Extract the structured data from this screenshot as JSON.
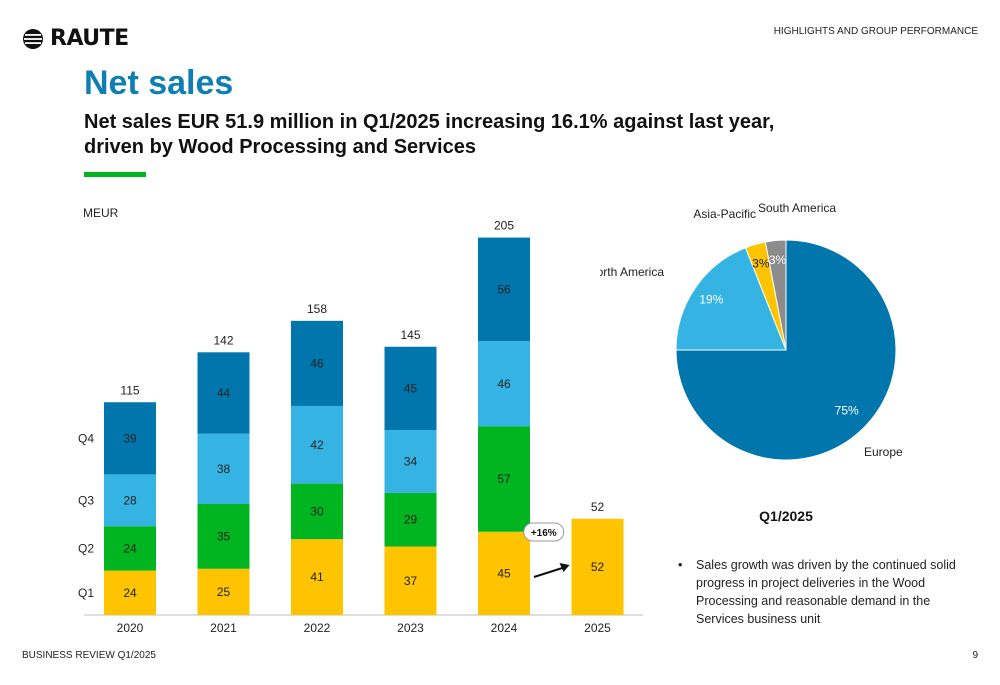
{
  "header": {
    "logo_text": "RAUTE",
    "section_label": "HIGHLIGHTS AND GROUP PERFORMANCE"
  },
  "title": "Net sales",
  "subtitle": "Net sales EUR 51.9 million in Q1/2025 increasing 16.1% against last year, driven by Wood Processing and Services",
  "bullet": "Sales growth was driven by the continued solid progress in project deliveries in the Wood Processing and reasonable demand in the Services business unit",
  "footer": {
    "left": "BUSINESS REVIEW Q1/2025",
    "page": "9"
  },
  "colors": {
    "brand_blue": "#0f7fb3",
    "accent_green": "#00b51f"
  },
  "chart_data": [
    {
      "type": "bar",
      "stacked": true,
      "ylabel": "MEUR",
      "categories": [
        "2020",
        "2021",
        "2022",
        "2023",
        "2024",
        "2025"
      ],
      "series": [
        {
          "name": "Q1",
          "color": "#fec400",
          "values": [
            24,
            25,
            41,
            37,
            45,
            52
          ]
        },
        {
          "name": "Q2",
          "color": "#00b51f",
          "values": [
            24,
            35,
            30,
            29,
            57,
            null
          ]
        },
        {
          "name": "Q3",
          "color": "#35b4e4",
          "values": [
            28,
            38,
            42,
            34,
            46,
            null
          ]
        },
        {
          "name": "Q4",
          "color": "#0076ad",
          "values": [
            39,
            44,
            46,
            45,
            56,
            null
          ]
        }
      ],
      "totals": [
        115,
        142,
        158,
        145,
        205,
        52
      ],
      "ylim": [
        0,
        205
      ],
      "legend": "left",
      "grid": false,
      "annotations": [
        {
          "text": "+16%",
          "from": "2024",
          "to": "2025"
        }
      ]
    },
    {
      "type": "pie",
      "title": "Q1/2025",
      "slices": [
        {
          "label": "Europe",
          "value": 75,
          "color": "#0076ad",
          "value_label": "75%"
        },
        {
          "label": "North America",
          "value": 19,
          "color": "#35b4e4",
          "value_label": "19%"
        },
        {
          "label": "Asia-Pacific",
          "value": 3,
          "color": "#fec400",
          "value_label": "3%"
        },
        {
          "label": "South America",
          "value": 3,
          "color": "#8c8c8c",
          "value_label": "3%"
        }
      ]
    }
  ]
}
